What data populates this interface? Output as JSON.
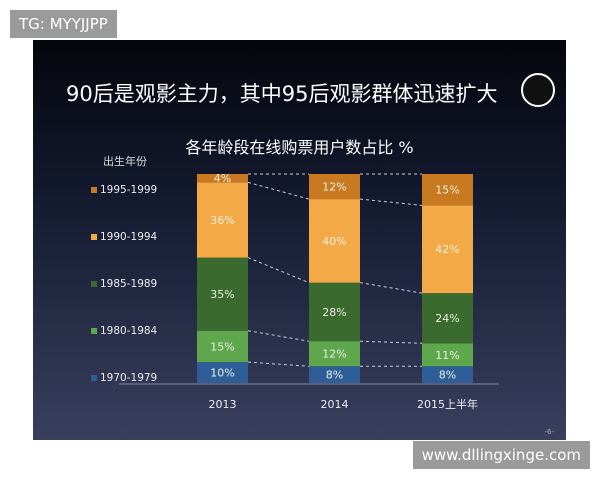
{
  "watermarks": {
    "top": "TG: MYYJJPP",
    "bottom": "www.dllingxinge.com"
  },
  "slide": {
    "title": "90后是观影主力，其中95后观影群体迅速扩大",
    "logo": "oo",
    "page": "-6-"
  },
  "chart_data": {
    "type": "bar",
    "stacked": true,
    "title": "各年龄段在线购票用户数占比 %",
    "legend_title": "出生年份",
    "legend_placement": "left",
    "categories": [
      "2013",
      "2014",
      "2015上半年"
    ],
    "ylim": [
      0,
      100
    ],
    "series": [
      {
        "name": "1970-1979",
        "color": "#2d5e97",
        "values": [
          10,
          8,
          8
        ]
      },
      {
        "name": "1980-1984",
        "color": "#5ea74d",
        "values": [
          15,
          12,
          11
        ]
      },
      {
        "name": "1985-1989",
        "color": "#3b6a2f",
        "values": [
          35,
          28,
          24
        ]
      },
      {
        "name": "1990-1994",
        "color": "#f3aa46",
        "values": [
          36,
          40,
          42
        ]
      },
      {
        "name": "1995-1999",
        "color": "#c97a20",
        "values": [
          4,
          12,
          15
        ]
      }
    ]
  }
}
